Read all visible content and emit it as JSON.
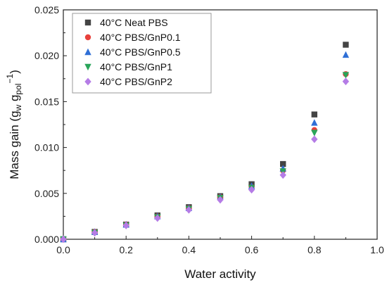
{
  "chart_data": {
    "type": "scatter",
    "xlabel": "Water activity",
    "ylabel": {
      "base": "Mass gain (g",
      "sub1": "w",
      "middle": " g",
      "sub2": "pol",
      "sup": "−1",
      "end": ")"
    },
    "xlim": [
      0.0,
      1.0
    ],
    "ylim": [
      0.0,
      0.025
    ],
    "xticks": [
      "0.0",
      "0.2",
      "0.4",
      "0.6",
      "0.8",
      "1.0"
    ],
    "yticks": [
      "0.000",
      "0.005",
      "0.010",
      "0.015",
      "0.020",
      "0.025"
    ],
    "legend_position": "top-left",
    "grid": false,
    "series": [
      {
        "name": "40°C Neat PBS",
        "marker": "square",
        "color": "#444444",
        "x": [
          0.0,
          0.1,
          0.2,
          0.3,
          0.4,
          0.5,
          0.6,
          0.7,
          0.8,
          0.9
        ],
        "y": [
          0.0,
          0.0008,
          0.0016,
          0.0026,
          0.0035,
          0.0047,
          0.006,
          0.0082,
          0.0136,
          0.0212
        ]
      },
      {
        "name": "40°C PBS/GnP0.1",
        "marker": "circle",
        "color": "#e8413c",
        "x": [
          0.0,
          0.1,
          0.2,
          0.3,
          0.4,
          0.5,
          0.6,
          0.7,
          0.8,
          0.9
        ],
        "y": [
          0.0,
          0.0008,
          0.0016,
          0.0025,
          0.0034,
          0.0046,
          0.0057,
          0.0075,
          0.0119,
          0.018
        ]
      },
      {
        "name": "40°C PBS/GnP0.5",
        "marker": "triangle-up",
        "color": "#2f6fd6",
        "x": [
          0.0,
          0.1,
          0.2,
          0.3,
          0.4,
          0.5,
          0.6,
          0.7,
          0.8,
          0.9
        ],
        "y": [
          0.0,
          0.0008,
          0.0016,
          0.0025,
          0.0034,
          0.0046,
          0.0058,
          0.0077,
          0.0127,
          0.0201
        ]
      },
      {
        "name": "40°C PBS/GnP1",
        "marker": "triangle-down",
        "color": "#2aa55a",
        "x": [
          0.0,
          0.1,
          0.2,
          0.3,
          0.4,
          0.5,
          0.6,
          0.7,
          0.8,
          0.9
        ],
        "y": [
          0.0,
          0.0007,
          0.0015,
          0.0024,
          0.0033,
          0.0045,
          0.0056,
          0.0074,
          0.0116,
          0.0179
        ]
      },
      {
        "name": "40°C PBS/GnP2",
        "marker": "diamond",
        "color": "#b57ce6",
        "x": [
          0.0,
          0.1,
          0.2,
          0.3,
          0.4,
          0.5,
          0.6,
          0.7,
          0.8,
          0.9
        ],
        "y": [
          0.0,
          0.0007,
          0.0015,
          0.0023,
          0.0032,
          0.0043,
          0.0054,
          0.007,
          0.0109,
          0.0172
        ]
      }
    ]
  }
}
